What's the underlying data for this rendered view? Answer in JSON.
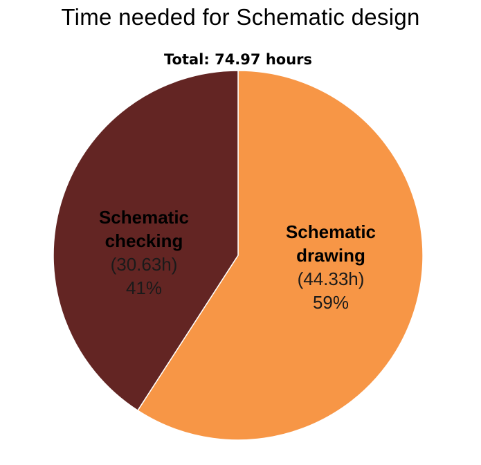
{
  "chart_data": {
    "type": "pie",
    "title": "Time needed  for Schematic design",
    "subtitle": "Total: 74.97 hours",
    "slices": [
      {
        "name_line1": "Schematic",
        "name_line2": "drawing",
        "hours_label": "(44.33h)",
        "percent_label": "59%",
        "value": 44.33,
        "color": "#F79646"
      },
      {
        "name_line1": "Schematic",
        "name_line2": "checking",
        "hours_label": "(30.63h)",
        "percent_label": "41%",
        "value": 30.63,
        "color": "#632523"
      }
    ],
    "start_angle": "12 o'clock",
    "direction": "clockwise",
    "legend": "none"
  }
}
